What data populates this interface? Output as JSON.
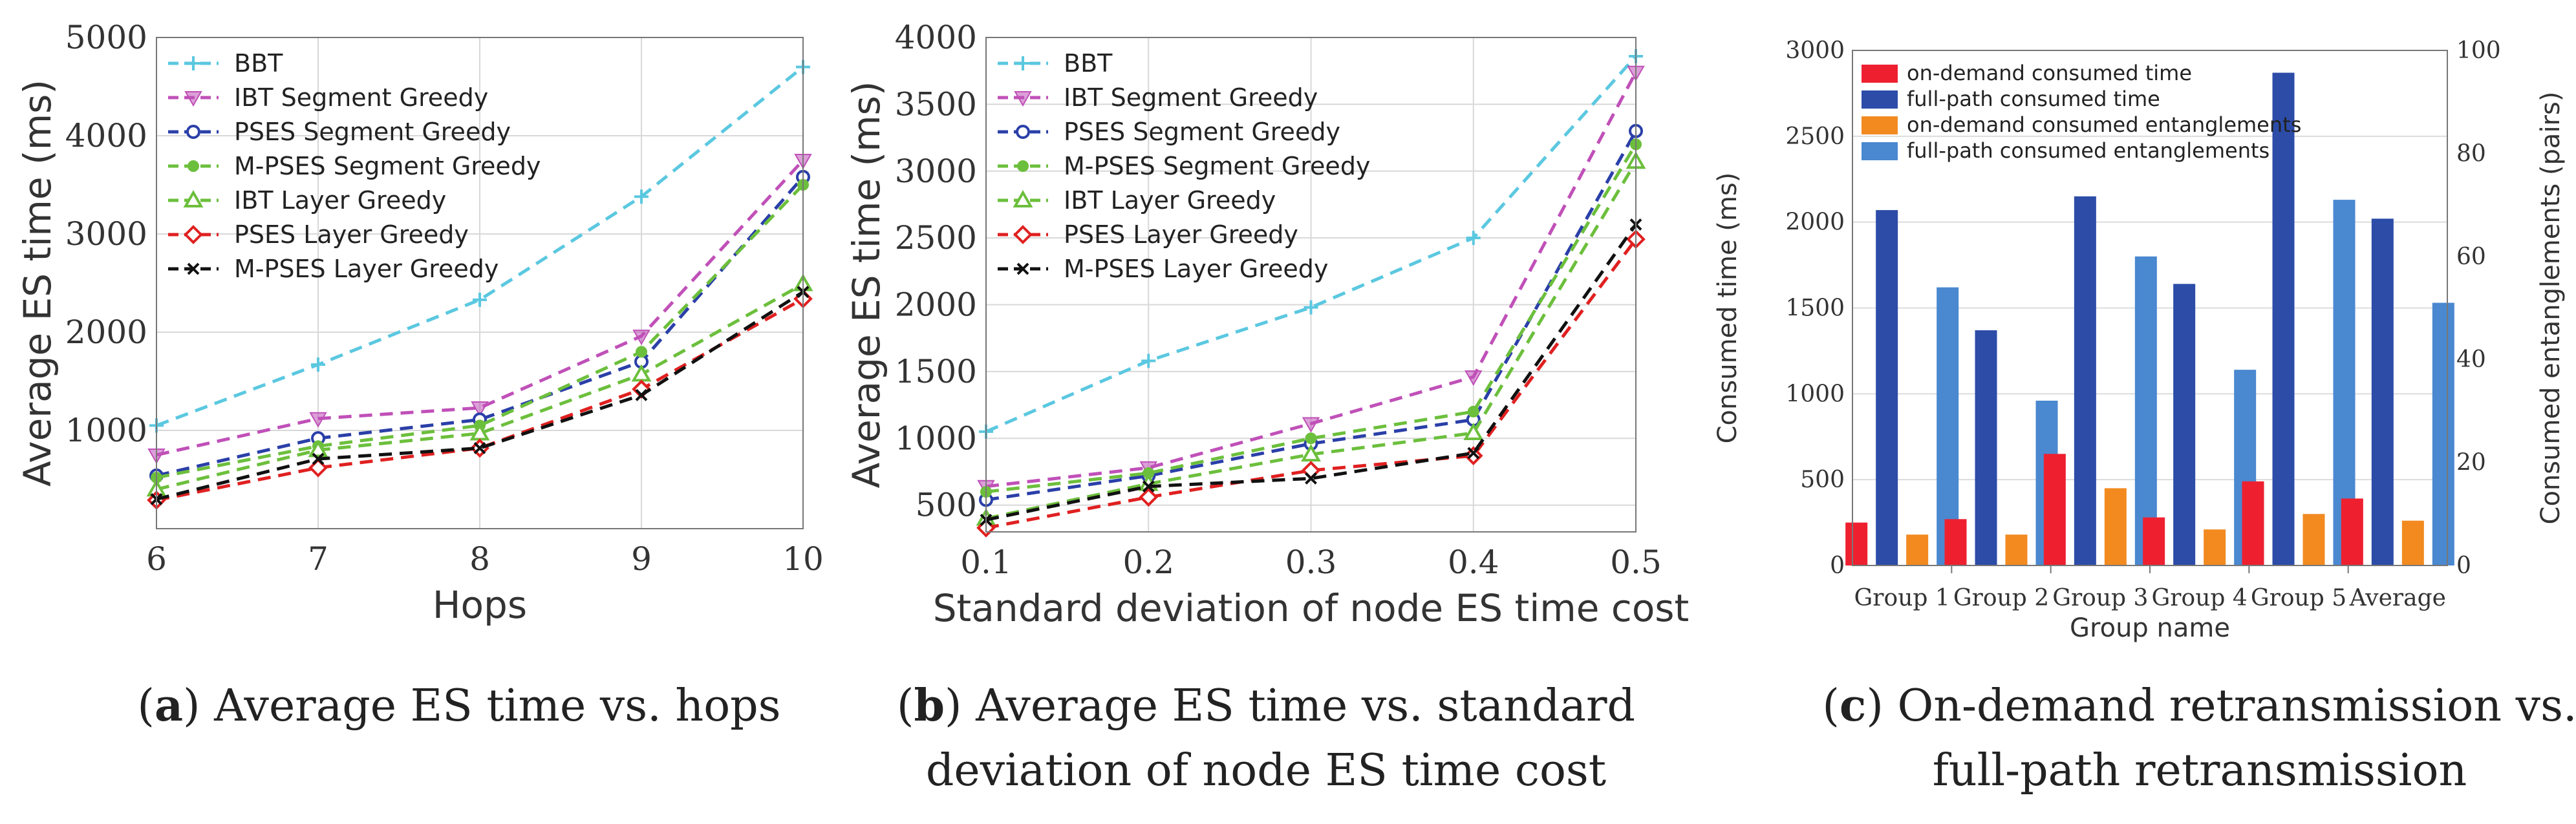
{
  "chart_data": [
    {
      "type": "line",
      "caption_label": "a",
      "caption_text": "Average ES time vs. hops",
      "xlabel": "Hops",
      "ylabel": "Average ES time (ms)",
      "xlim": [
        6,
        10
      ],
      "ylim": [
        0,
        5000
      ],
      "x": [
        6,
        7,
        8,
        9,
        10
      ],
      "xticks": [
        6,
        7,
        8,
        9,
        10
      ],
      "yticks": [
        1000,
        2000,
        3000,
        4000,
        5000
      ],
      "legend_position": "top-left",
      "grid": true,
      "series": [
        {
          "name": "BBT",
          "color": "#5bc8e0",
          "marker": "plus",
          "values": [
            1050,
            1670,
            2330,
            3380,
            4700
          ]
        },
        {
          "name": "IBT Segment Greedy",
          "color": "#c050b8",
          "marker": "tri-down",
          "values": [
            750,
            1120,
            1230,
            1960,
            3750
          ]
        },
        {
          "name": "PSES Segment Greedy",
          "color": "#2a3fa8",
          "marker": "circle",
          "values": [
            540,
            920,
            1110,
            1700,
            3580
          ]
        },
        {
          "name": "M-PSES Segment Greedy",
          "color": "#6cbf3c",
          "marker": "dot",
          "values": [
            520,
            840,
            1050,
            1800,
            3500
          ]
        },
        {
          "name": "IBT Layer Greedy",
          "color": "#6cbf3c",
          "marker": "tri-up",
          "values": [
            400,
            800,
            970,
            1570,
            2490
          ]
        },
        {
          "name": "PSES Layer Greedy",
          "color": "#e02020",
          "marker": "diamond",
          "values": [
            290,
            620,
            820,
            1420,
            2340
          ]
        },
        {
          "name": "M-PSES Layer Greedy",
          "color": "#111111",
          "marker": "x",
          "values": [
            300,
            710,
            820,
            1360,
            2410
          ]
        }
      ]
    },
    {
      "type": "line",
      "caption_label": "b",
      "caption_text_line1": "Average ES time vs. standard",
      "caption_text_line2": "deviation of node ES time cost",
      "xlabel": "Standard deviation of node ES time cost",
      "ylabel": "Average ES time (ms)",
      "xlim": [
        0.1,
        0.5
      ],
      "ylim": [
        300,
        4000
      ],
      "x": [
        0.1,
        0.2,
        0.3,
        0.4,
        0.5
      ],
      "xticks": [
        "0.1",
        "0.2",
        "0.3",
        "0.4",
        "0.5"
      ],
      "yticks": [
        500,
        1000,
        1500,
        2000,
        2500,
        3000,
        3500,
        4000
      ],
      "legend_position": "top-left",
      "grid": true,
      "series": [
        {
          "name": "BBT",
          "color": "#5bc8e0",
          "marker": "plus",
          "values": [
            1050,
            1580,
            1980,
            2500,
            3860
          ]
        },
        {
          "name": "IBT Segment Greedy",
          "color": "#c050b8",
          "marker": "tri-down",
          "values": [
            640,
            780,
            1110,
            1460,
            3740
          ]
        },
        {
          "name": "PSES Segment Greedy",
          "color": "#2a3fa8",
          "marker": "circle",
          "values": [
            540,
            720,
            960,
            1140,
            3300
          ]
        },
        {
          "name": "M-PSES Segment Greedy",
          "color": "#6cbf3c",
          "marker": "dot",
          "values": [
            600,
            740,
            1000,
            1200,
            3200
          ]
        },
        {
          "name": "IBT Layer Greedy",
          "color": "#6cbf3c",
          "marker": "tri-up",
          "values": [
            400,
            660,
            880,
            1040,
            3070
          ]
        },
        {
          "name": "PSES Layer Greedy",
          "color": "#e02020",
          "marker": "diamond",
          "values": [
            330,
            560,
            760,
            870,
            2490
          ]
        },
        {
          "name": "M-PSES Layer Greedy",
          "color": "#111111",
          "marker": "x",
          "values": [
            390,
            640,
            700,
            890,
            2600
          ]
        }
      ]
    },
    {
      "type": "bar",
      "caption_label": "c",
      "caption_text_line1": "On-demand retransmission vs.",
      "caption_text_line2": "full-path retransmission",
      "xlabel": "Group name",
      "ylabel": "Consumed time (ms)",
      "ylabel_right": "Consumed entanglements (pairs)",
      "categories": [
        "Group 1",
        "Group 2",
        "Group 3",
        "Group 4",
        "Group 5",
        "Average"
      ],
      "ylim": [
        0,
        3000
      ],
      "ylim_right": [
        0,
        100
      ],
      "yticks": [
        0,
        500,
        1000,
        1500,
        2000,
        2500,
        3000
      ],
      "yticks_right": [
        0,
        20,
        40,
        60,
        80,
        100
      ],
      "legend_position": "top-left",
      "series": [
        {
          "name": "on-demand consumed time",
          "axis": "left",
          "color": "#ee2030",
          "values": [
            250,
            270,
            650,
            280,
            490,
            390
          ]
        },
        {
          "name": "full-path consumed time",
          "axis": "left",
          "color": "#2c4ca8",
          "values": [
            2070,
            1370,
            2150,
            1640,
            2870,
            2020
          ]
        },
        {
          "name": "on-demand consumed entanglements",
          "axis": "right",
          "color": "#f28a20",
          "values": [
            6,
            6,
            15,
            7,
            10,
            8.7
          ]
        },
        {
          "name": "full-path consumed entanglements",
          "axis": "right",
          "color": "#4a88d0",
          "values": [
            54,
            32,
            60,
            38,
            71,
            51
          ]
        }
      ]
    }
  ]
}
